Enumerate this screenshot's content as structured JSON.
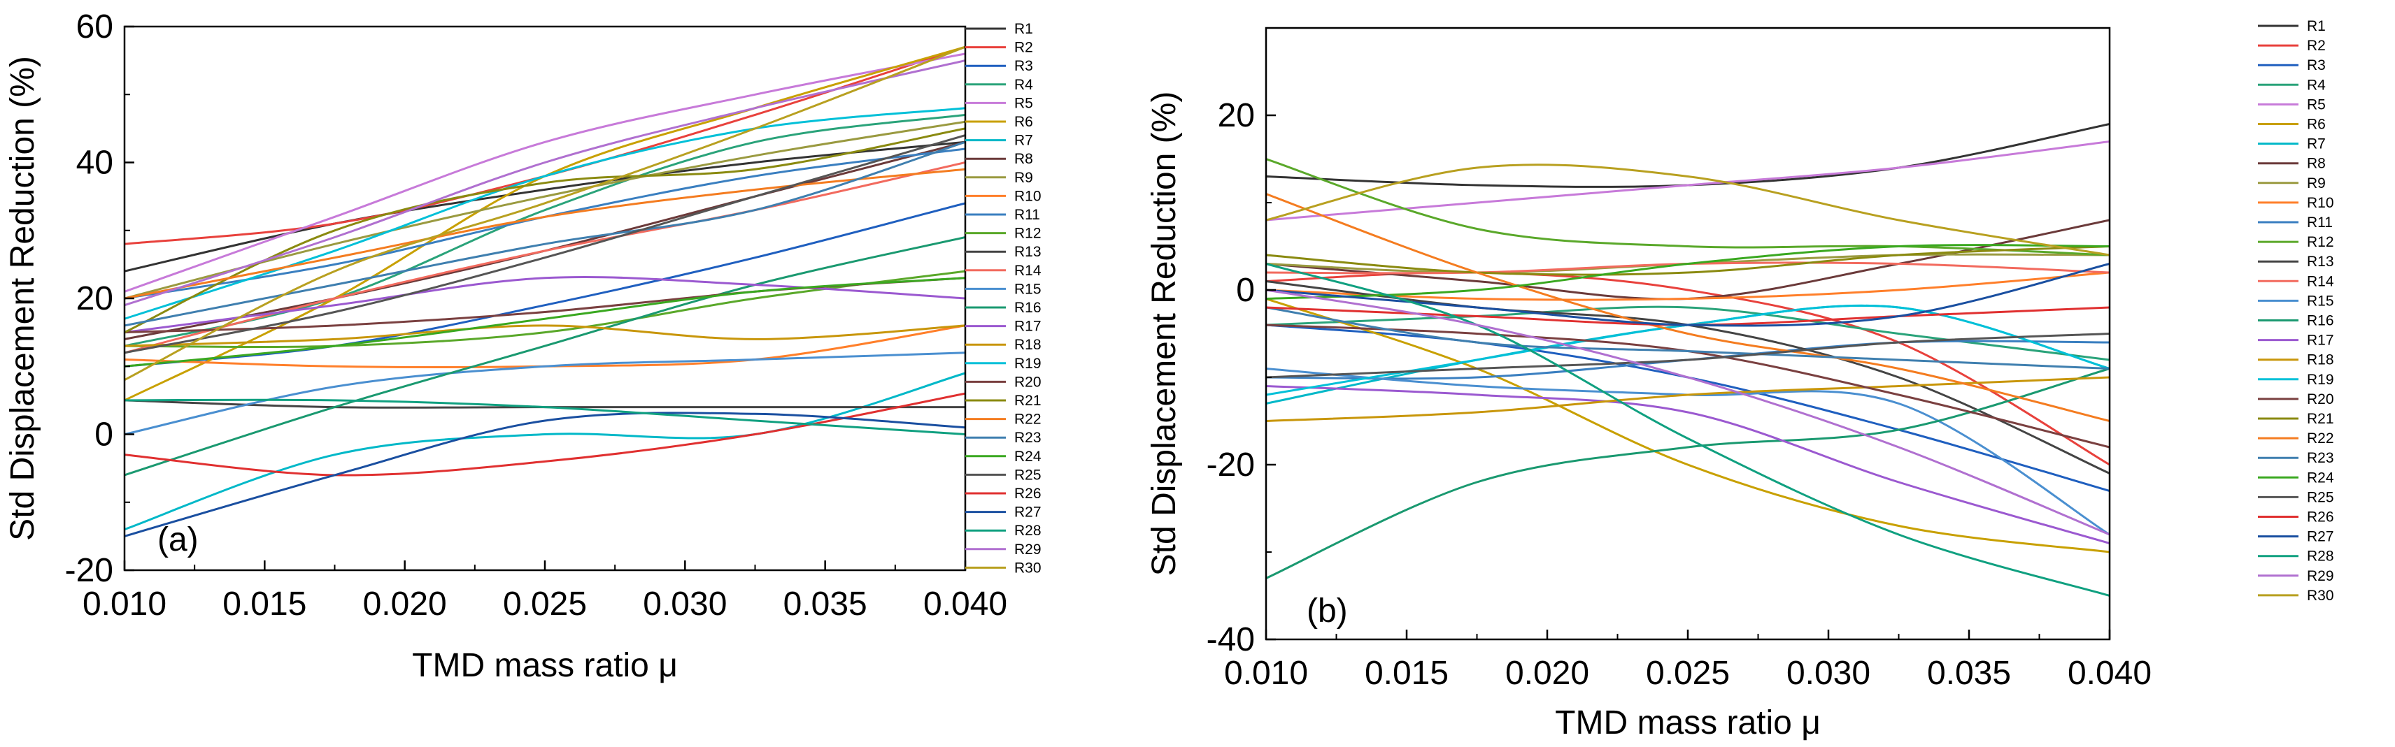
{
  "chart_data": [
    {
      "type": "line",
      "panel_label": "(a)",
      "xlabel": "TMD mass ratio  μ",
      "ylabel": "Std Displacement Reduction (%)",
      "xlim": [
        0.01,
        0.04
      ],
      "ylim": [
        -20,
        60
      ],
      "xticks": [
        0.01,
        0.015,
        0.02,
        0.025,
        0.03,
        0.035,
        0.04
      ],
      "yticks": [
        -20,
        0,
        20,
        40,
        60
      ],
      "xtick_labels": [
        "0.010",
        "0.015",
        "0.020",
        "0.025",
        "0.030",
        "0.035",
        "0.040"
      ],
      "ytick_labels": [
        "-20",
        "0",
        "20",
        "40",
        "60"
      ],
      "x": [
        0.01,
        0.0175,
        0.025,
        0.0325,
        0.04
      ],
      "series": [
        {
          "name": "R1",
          "color": "#333333",
          "values": [
            24,
            31,
            36,
            40,
            43
          ]
        },
        {
          "name": "R2",
          "color": "#e8413c",
          "values": [
            28,
            31,
            38,
            47,
            57
          ]
        },
        {
          "name": "R3",
          "color": "#1f5fbf",
          "values": [
            10,
            13,
            19,
            26,
            34
          ]
        },
        {
          "name": "R4",
          "color": "#2aa37a",
          "values": [
            13,
            20,
            33,
            43,
            47
          ]
        },
        {
          "name": "R5",
          "color": "#c77ad9",
          "values": [
            21,
            32,
            43,
            50,
            56
          ]
        },
        {
          "name": "R6",
          "color": "#c8a000",
          "values": [
            5,
            20,
            38,
            48,
            57
          ]
        },
        {
          "name": "R7",
          "color": "#00b8c8",
          "values": [
            -14,
            -3,
            0,
            0,
            9
          ]
        },
        {
          "name": "R8",
          "color": "#6b3a3a",
          "values": [
            14,
            20,
            27,
            35,
            43
          ]
        },
        {
          "name": "R9",
          "color": "#9a9a40",
          "values": [
            20,
            28,
            35,
            41,
            46
          ]
        },
        {
          "name": "R10",
          "color": "#ff7f2a",
          "values": [
            11,
            10,
            10,
            11,
            16
          ]
        },
        {
          "name": "R11",
          "color": "#3a7fc0",
          "values": [
            20,
            25,
            32,
            38,
            42
          ]
        },
        {
          "name": "R12",
          "color": "#5aa82a",
          "values": [
            13,
            13,
            15,
            20,
            24
          ]
        },
        {
          "name": "R13",
          "color": "#444444",
          "values": [
            5,
            4,
            4,
            4,
            4
          ]
        },
        {
          "name": "R14",
          "color": "#f26a5e",
          "values": [
            12,
            20,
            27,
            33,
            40
          ]
        },
        {
          "name": "R15",
          "color": "#4a8fd0",
          "values": [
            0,
            7,
            10,
            11,
            12
          ]
        },
        {
          "name": "R16",
          "color": "#1a9970",
          "values": [
            -6,
            4,
            13,
            22,
            29
          ]
        },
        {
          "name": "R17",
          "color": "#9b59d0",
          "values": [
            15,
            19,
            23,
            22,
            20
          ]
        },
        {
          "name": "R18",
          "color": "#c8960a",
          "values": [
            13,
            14,
            16,
            14,
            16
          ]
        },
        {
          "name": "R19",
          "color": "#00c0d8",
          "values": [
            17,
            27,
            38,
            45,
            48
          ]
        },
        {
          "name": "R20",
          "color": "#7a4040",
          "values": [
            15,
            16,
            18,
            21,
            23
          ]
        },
        {
          "name": "R21",
          "color": "#8a8a10",
          "values": [
            15,
            30,
            37,
            39,
            45
          ]
        },
        {
          "name": "R22",
          "color": "#f47c20",
          "values": [
            20,
            26,
            32,
            36,
            39
          ]
        },
        {
          "name": "R23",
          "color": "#3f7faf",
          "values": [
            16,
            22,
            28,
            33,
            43
          ]
        },
        {
          "name": "R24",
          "color": "#3aa820",
          "values": [
            10,
            13,
            17,
            21,
            23
          ]
        },
        {
          "name": "R25",
          "color": "#555555",
          "values": [
            12,
            18,
            26,
            35,
            44
          ]
        },
        {
          "name": "R26",
          "color": "#e03030",
          "values": [
            -3,
            -6,
            -4,
            0,
            6
          ]
        },
        {
          "name": "R27",
          "color": "#1a4fa0",
          "values": [
            -15,
            -6,
            2,
            3,
            1
          ]
        },
        {
          "name": "R28",
          "color": "#10a080",
          "values": [
            5,
            5,
            4,
            2,
            0
          ]
        },
        {
          "name": "R29",
          "color": "#b070d0",
          "values": [
            19,
            29,
            40,
            48,
            55
          ]
        },
        {
          "name": "R30",
          "color": "#b8a020",
          "values": [
            8,
            24,
            34,
            45,
            57
          ]
        }
      ]
    },
    {
      "type": "line",
      "panel_label": "(b)",
      "xlabel": "TMD mass ratio  μ",
      "ylabel": "Std Displacement Reduction (%)",
      "xlim": [
        0.01,
        0.04
      ],
      "ylim": [
        -40,
        30
      ],
      "xticks": [
        0.01,
        0.015,
        0.02,
        0.025,
        0.03,
        0.035,
        0.04
      ],
      "yticks": [
        -40,
        -20,
        0,
        20
      ],
      "xtick_labels": [
        "0.010",
        "0.015",
        "0.020",
        "0.025",
        "0.030",
        "0.035",
        "0.040"
      ],
      "ytick_labels": [
        "-40",
        "-20",
        "0",
        "20"
      ],
      "x": [
        0.01,
        0.0175,
        0.025,
        0.0325,
        0.04
      ],
      "series": [
        {
          "name": "R1",
          "color": "#333333",
          "values": [
            13,
            12,
            12,
            14,
            19
          ]
        },
        {
          "name": "R2",
          "color": "#e8413c",
          "values": [
            1,
            2,
            0,
            -6,
            -20
          ]
        },
        {
          "name": "R3",
          "color": "#1f5fbf",
          "values": [
            -4,
            -6,
            -10,
            -16,
            -23
          ]
        },
        {
          "name": "R4",
          "color": "#2aa37a",
          "values": [
            -4,
            -3,
            -2,
            -5,
            -8
          ]
        },
        {
          "name": "R5",
          "color": "#c77ad9",
          "values": [
            8,
            10,
            12,
            14,
            17
          ]
        },
        {
          "name": "R6",
          "color": "#c8a000",
          "values": [
            -1,
            -9,
            -20,
            -27,
            -30
          ]
        },
        {
          "name": "R7",
          "color": "#00b8c8",
          "values": [
            -13,
            -8,
            -4,
            -2,
            -9
          ]
        },
        {
          "name": "R8",
          "color": "#6b3a3a",
          "values": [
            3,
            1,
            -1,
            3,
            8
          ]
        },
        {
          "name": "R9",
          "color": "#9a9a40",
          "values": [
            3,
            2,
            3,
            4,
            4
          ]
        },
        {
          "name": "R10",
          "color": "#ff7f2a",
          "values": [
            0,
            -1,
            -1,
            0,
            2
          ]
        },
        {
          "name": "R11",
          "color": "#3a7fc0",
          "values": [
            -10,
            -10,
            -8,
            -6,
            -6
          ]
        },
        {
          "name": "R12",
          "color": "#5aa82a",
          "values": [
            15,
            7,
            5,
            5,
            4
          ]
        },
        {
          "name": "R13",
          "color": "#444444",
          "values": [
            1,
            -2,
            -4,
            -10,
            -21
          ]
        },
        {
          "name": "R14",
          "color": "#f26a5e",
          "values": [
            2,
            2,
            3,
            3,
            2
          ]
        },
        {
          "name": "R15",
          "color": "#4a8fd0",
          "values": [
            -9,
            -11,
            -12,
            -13,
            -28
          ]
        },
        {
          "name": "R16",
          "color": "#1a9970",
          "values": [
            -33,
            -22,
            -18,
            -16,
            -9
          ]
        },
        {
          "name": "R17",
          "color": "#9b59d0",
          "values": [
            -11,
            -12,
            -14,
            -22,
            -29
          ]
        },
        {
          "name": "R18",
          "color": "#c8960a",
          "values": [
            -15,
            -14,
            -12,
            -11,
            -10
          ]
        },
        {
          "name": "R19",
          "color": "#00c0d8",
          "values": [
            -12,
            -8,
            -4,
            -2,
            -9
          ]
        },
        {
          "name": "R20",
          "color": "#7a4040",
          "values": [
            -4,
            -5,
            -7,
            -12,
            -18
          ]
        },
        {
          "name": "R21",
          "color": "#8a8a10",
          "values": [
            4,
            2,
            2,
            4,
            5
          ]
        },
        {
          "name": "R22",
          "color": "#f47c20",
          "values": [
            11,
            2,
            -5,
            -9,
            -15
          ]
        },
        {
          "name": "R23",
          "color": "#3f7faf",
          "values": [
            -2,
            -6,
            -7,
            -8,
            -9
          ]
        },
        {
          "name": "R24",
          "color": "#3aa820",
          "values": [
            -1,
            0,
            3,
            5,
            5
          ]
        },
        {
          "name": "R25",
          "color": "#555555",
          "values": [
            -10,
            -9,
            -8,
            -6,
            -5
          ]
        },
        {
          "name": "R26",
          "color": "#e03030",
          "values": [
            -2,
            -3,
            -4,
            -3,
            -2
          ]
        },
        {
          "name": "R27",
          "color": "#1a4fa0",
          "values": [
            0,
            -2,
            -4,
            -3,
            3
          ]
        },
        {
          "name": "R28",
          "color": "#10a080",
          "values": [
            3,
            -4,
            -17,
            -28,
            -35
          ]
        },
        {
          "name": "R29",
          "color": "#b070d0",
          "values": [
            0,
            -4,
            -10,
            -18,
            -28
          ]
        },
        {
          "name": "R30",
          "color": "#b8a020",
          "values": [
            8,
            14,
            13,
            8,
            4
          ]
        }
      ]
    }
  ]
}
